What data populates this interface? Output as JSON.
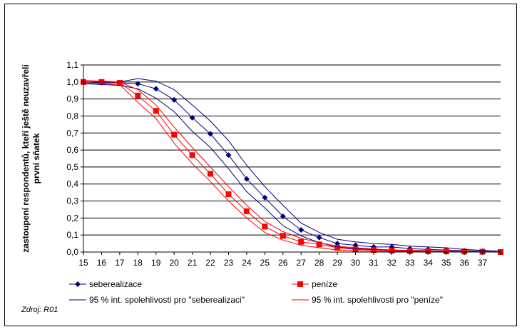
{
  "chart_data": {
    "type": "line",
    "title": "",
    "ylabel_lines": [
      "zastoupení respondentů, kteří ještě neuzavřeli",
      "první sňatek"
    ],
    "xlabel": "",
    "x": [
      15,
      16,
      17,
      18,
      19,
      20,
      21,
      22,
      23,
      24,
      25,
      26,
      27,
      28,
      29,
      30,
      31,
      32,
      33,
      34,
      35,
      36,
      37,
      38
    ],
    "xtick_labels": [
      "15",
      "16",
      "17",
      "18",
      "19",
      "20",
      "21",
      "22",
      "23",
      "24",
      "25",
      "26",
      "27",
      "28",
      "29",
      "30",
      "31",
      "32",
      "33",
      "34",
      "35",
      "36",
      "37"
    ],
    "ylim": [
      0,
      1.1
    ],
    "yticks": [
      "0,0",
      "0,1",
      "0,2",
      "0,3",
      "0,4",
      "0,5",
      "0,6",
      "0,7",
      "0,8",
      "0,9",
      "1,0",
      "1,1"
    ],
    "grid": true,
    "series": [
      {
        "name": "seberealizace",
        "color": "#000080",
        "marker": "diamond",
        "values": [
          1.0,
          0.995,
          0.995,
          0.99,
          0.96,
          0.895,
          0.79,
          0.695,
          0.57,
          0.43,
          0.32,
          0.21,
          0.13,
          0.085,
          0.05,
          0.04,
          0.03,
          0.03,
          0.02,
          0.015,
          0.012,
          0.008,
          0.005,
          0.0
        ]
      },
      {
        "name": "peníze",
        "color": "#ff0000",
        "marker": "square",
        "values": [
          1.0,
          1.0,
          0.995,
          0.92,
          0.83,
          0.69,
          0.57,
          0.46,
          0.34,
          0.24,
          0.15,
          0.095,
          0.06,
          0.045,
          0.025,
          0.015,
          0.012,
          0.008,
          0.006,
          0.005,
          0.004,
          0.003,
          0.002,
          0.0
        ]
      },
      {
        "name": "95 % int. spolehlivosti pro \"seberealizaci\"",
        "color": "#000080",
        "marker": "none",
        "upper": [
          1.0,
          1.0,
          1.0,
          1.02,
          1.005,
          0.955,
          0.865,
          0.77,
          0.655,
          0.51,
          0.385,
          0.275,
          0.17,
          0.115,
          0.075,
          0.06,
          0.05,
          0.045,
          0.035,
          0.03,
          0.025,
          0.015,
          0.01,
          0.005
        ],
        "lower": [
          0.99,
          0.985,
          0.98,
          0.96,
          0.905,
          0.825,
          0.71,
          0.615,
          0.49,
          0.355,
          0.26,
          0.155,
          0.095,
          0.055,
          0.03,
          0.02,
          0.015,
          0.012,
          0.008,
          0.006,
          0.004,
          0.002,
          0.001,
          0.0
        ]
      },
      {
        "name": "95 % int. spolehlivosti pro \"peníze\"",
        "color": "#ff0000",
        "marker": "none",
        "upper": [
          1.01,
          1.005,
          1.0,
          0.955,
          0.865,
          0.735,
          0.615,
          0.5,
          0.385,
          0.275,
          0.18,
          0.12,
          0.08,
          0.055,
          0.035,
          0.025,
          0.018,
          0.012,
          0.01,
          0.008,
          0.006,
          0.004,
          0.003,
          0.0
        ],
        "lower": [
          0.995,
          0.99,
          0.985,
          0.88,
          0.785,
          0.64,
          0.52,
          0.415,
          0.3,
          0.2,
          0.115,
          0.07,
          0.04,
          0.025,
          0.012,
          0.008,
          0.005,
          0.004,
          0.003,
          0.002,
          0.001,
          0.001,
          0.0,
          0.0
        ]
      }
    ],
    "legend_position": "bottom",
    "source_note": "Zdroj: R01"
  }
}
